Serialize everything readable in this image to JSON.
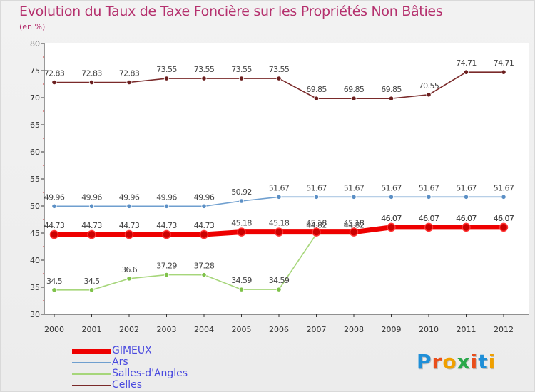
{
  "title": "Evolution du Taux de Taxe Foncière sur les Propriétés Non Bâties",
  "unit": "(en %)",
  "logo_text": "Proxiti",
  "chart_data": {
    "type": "line",
    "categories": [
      "2000",
      "2001",
      "2002",
      "2003",
      "2004",
      "2005",
      "2006",
      "2007",
      "2008",
      "2009",
      "2010",
      "2011",
      "2012"
    ],
    "ylim": [
      30,
      80
    ],
    "yticks": [
      30,
      35,
      40,
      45,
      50,
      55,
      60,
      65,
      70,
      75,
      80
    ],
    "grid": false,
    "series": [
      {
        "name": "Celles",
        "color": "#7a2a2a",
        "dot": "#6b1f1f",
        "values": [
          72.83,
          72.83,
          72.83,
          73.55,
          73.55,
          73.55,
          73.55,
          69.85,
          69.85,
          69.85,
          70.55,
          74.71,
          74.71
        ],
        "labels": [
          "72.83",
          "72.83",
          "72.83",
          "73.55",
          "73.55",
          "73.55",
          "73.55",
          "69.85",
          "69.85",
          "69.85",
          "70.55",
          "74.71",
          "74.71"
        ]
      },
      {
        "name": "Ars",
        "color": "#6f9fcf",
        "dot": "#5b8fc5",
        "values": [
          49.96,
          49.96,
          49.96,
          49.96,
          49.96,
          50.92,
          51.67,
          51.67,
          51.67,
          51.67,
          51.67,
          51.67,
          51.67
        ],
        "labels": [
          "49.96",
          "49.96",
          "49.96",
          "49.96",
          "49.96",
          "50.92",
          "51.67",
          "51.67",
          "51.67",
          "51.67",
          "51.67",
          "51.67",
          "51.67"
        ]
      },
      {
        "name": "Salles-d'Angles",
        "color": "#a6d67a",
        "dot": "#7fc24a",
        "values": [
          34.5,
          34.5,
          36.6,
          37.29,
          37.28,
          34.59,
          34.59,
          44.82,
          44.82,
          46.07,
          46.07,
          46.07,
          46.07
        ],
        "labels": [
          "34.5",
          "34.5",
          "36.6",
          "37.29",
          "37.28",
          "34.59",
          "34.59",
          "44.82",
          "44.82",
          "46.07",
          "46.07",
          "46.07",
          "46.07"
        ]
      },
      {
        "name": "GIMEUX",
        "color": "#ee0000",
        "dot": "#cc0000",
        "values": [
          44.73,
          44.73,
          44.73,
          44.73,
          44.73,
          45.18,
          45.18,
          45.18,
          45.18,
          46.07,
          46.07,
          46.07,
          46.07
        ],
        "labels": [
          "44.73",
          "44.73",
          "44.73",
          "44.73",
          "44.73",
          "45.18",
          "45.18",
          "45.18",
          "45.18",
          "46.07",
          "46.07",
          "46.07",
          "46.07"
        ]
      }
    ],
    "legend": [
      {
        "name": "GIMEUX",
        "color": "#ee0000",
        "width": 7
      },
      {
        "name": "Ars",
        "color": "#6f9fcf",
        "width": 2
      },
      {
        "name": "Salles-d'Angles",
        "color": "#a6d67a",
        "width": 2
      },
      {
        "name": "Celles",
        "color": "#7a2a2a",
        "width": 2
      }
    ]
  },
  "logo_colors": [
    "#1f8fd8",
    "#e94e1b",
    "#f0a000",
    "#2aa84a",
    "#e94e1b",
    "#1f8fd8",
    "#f0a000"
  ]
}
